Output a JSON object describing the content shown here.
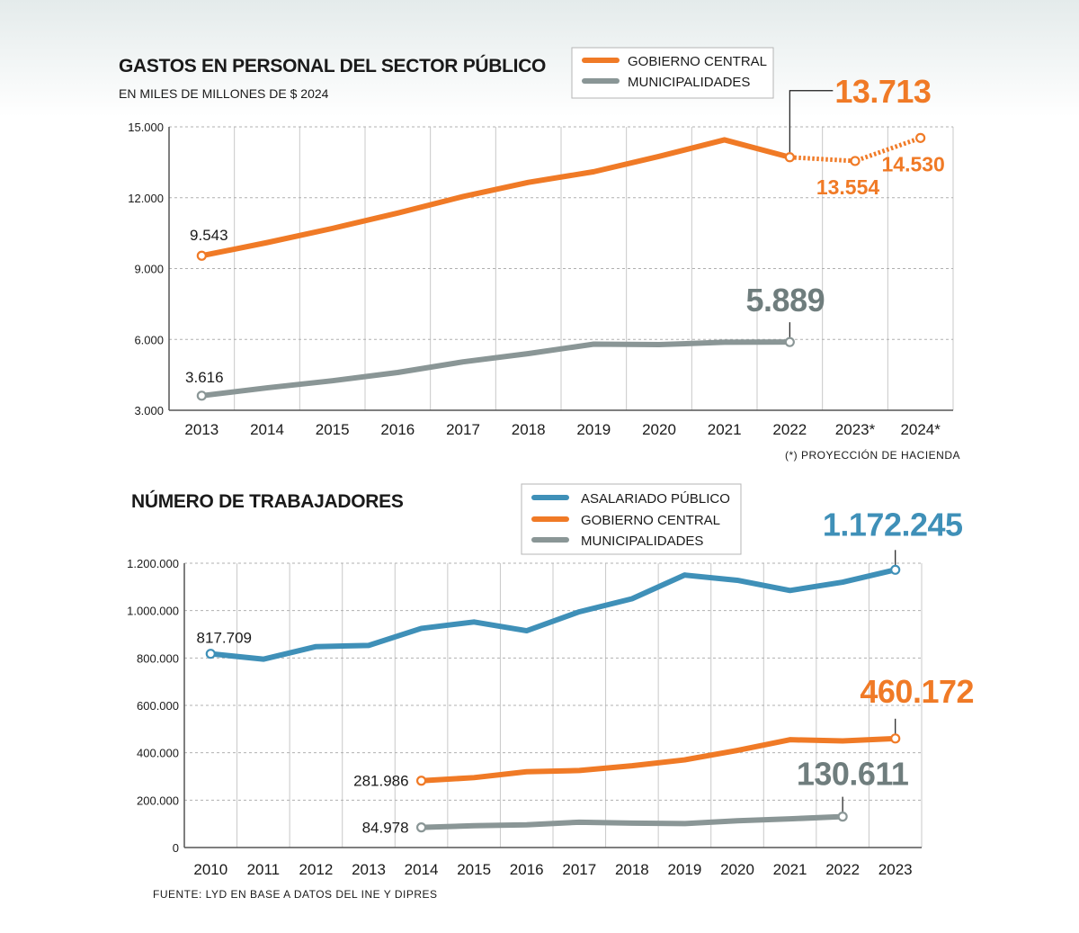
{
  "colors": {
    "gobierno": "#f07a26",
    "municipalidades": "#8a9696",
    "asalariado": "#3f90b8",
    "municipal_label": "#6f7d7d"
  },
  "note": "(*) PROYECCIÓN DE HACIENDA",
  "source": "FUENTE: LYD EN BASE A DATOS DEL INE Y DIPRES",
  "chart_data": [
    {
      "type": "line",
      "title": "GASTOS EN PERSONAL DEL SECTOR PÚBLICO",
      "subtitle": "EN MILES DE MILLONES DE $ 2024",
      "categories": [
        "2013",
        "2014",
        "2015",
        "2016",
        "2017",
        "2018",
        "2019",
        "2020",
        "2021",
        "2022",
        "2023*",
        "2024*"
      ],
      "ylim": [
        3000,
        15000
      ],
      "yticks": [
        3000,
        6000,
        9000,
        12000,
        15000
      ],
      "ytick_labels": [
        "3.000",
        "6.000",
        "9.000",
        "12.000",
        "15.000"
      ],
      "grid": true,
      "legend_position": "top",
      "series": [
        {
          "name": "GOBIERNO CENTRAL",
          "values": [
            9543,
            10100,
            10700,
            11350,
            12050,
            12650,
            13100,
            13750,
            14450,
            13713,
            13554,
            14530
          ],
          "projected_from_index": 9
        },
        {
          "name": "MUNICIPALIDADES",
          "values": [
            3616,
            3950,
            4250,
            4600,
            5050,
            5400,
            5800,
            5780,
            5880,
            5889,
            null,
            null
          ]
        }
      ],
      "annotations": [
        {
          "series": 0,
          "index": 0,
          "text": "9.543"
        },
        {
          "series": 0,
          "index": 9,
          "text": "13.713"
        },
        {
          "series": 0,
          "index": 10,
          "text": "13.554"
        },
        {
          "series": 0,
          "index": 11,
          "text": "14.530"
        },
        {
          "series": 1,
          "index": 0,
          "text": "3.616"
        },
        {
          "series": 1,
          "index": 9,
          "text": "5.889"
        }
      ]
    },
    {
      "type": "line",
      "title": "NÚMERO DE TRABAJADORES",
      "categories": [
        "2010",
        "2011",
        "2012",
        "2013",
        "2014",
        "2015",
        "2016",
        "2017",
        "2018",
        "2019",
        "2020",
        "2021",
        "2022",
        "2023"
      ],
      "ylim": [
        0,
        1200000
      ],
      "yticks": [
        0,
        200000,
        400000,
        600000,
        800000,
        1000000,
        1200000
      ],
      "ytick_labels": [
        "0",
        "200.000",
        "400.000",
        "600.000",
        "800.000",
        "1.000.000",
        "1.200.000"
      ],
      "grid": true,
      "legend_position": "top",
      "series": [
        {
          "name": "ASALARIADO PÚBLICO",
          "values": [
            817709,
            795000,
            848000,
            853000,
            925000,
            952000,
            915000,
            995000,
            1050000,
            1150000,
            1128000,
            1085000,
            1120000,
            1172245
          ]
        },
        {
          "name": "GOBIERNO CENTRAL",
          "values": [
            null,
            null,
            null,
            null,
            281986,
            295000,
            320000,
            325000,
            345000,
            370000,
            410000,
            455000,
            450000,
            460172
          ]
        },
        {
          "name": "MUNICIPALIDADES",
          "values": [
            null,
            null,
            null,
            null,
            84978,
            92000,
            96000,
            107000,
            103000,
            101000,
            113000,
            121000,
            130611,
            null
          ]
        }
      ],
      "annotations": [
        {
          "series": 0,
          "index": 0,
          "text": "817.709"
        },
        {
          "series": 0,
          "index": 13,
          "text": "1.172.245"
        },
        {
          "series": 1,
          "index": 4,
          "text": "281.986"
        },
        {
          "series": 1,
          "index": 13,
          "text": "460.172"
        },
        {
          "series": 2,
          "index": 4,
          "text": "84.978"
        },
        {
          "series": 2,
          "index": 12,
          "text": "130.611"
        }
      ]
    }
  ]
}
